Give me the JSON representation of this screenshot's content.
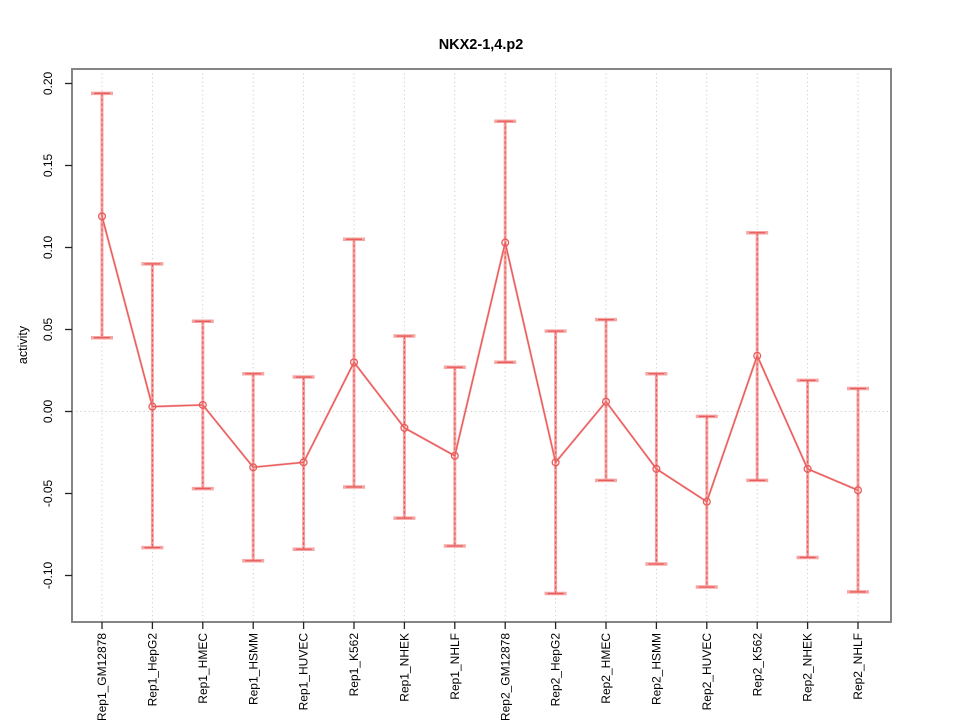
{
  "chart_data": {
    "type": "line",
    "title": "NKX2-1,4.p2",
    "xlabel": "",
    "ylabel": "activity",
    "ylim": [
      -0.125,
      0.205
    ],
    "yticks": [
      0.2,
      0.15,
      0.1,
      0.05,
      0.0,
      -0.05,
      -0.1
    ],
    "ytick_labels": [
      "0.20",
      "0.15",
      "0.10",
      "0.05",
      "0.00",
      "-0.05",
      "-0.10"
    ],
    "categories": [
      "Rep1_GM12878",
      "Rep1_HepG2",
      "Rep1_HMEC",
      "Rep1_HSMM",
      "Rep1_HUVEC",
      "Rep1_K562",
      "Rep1_NHEK",
      "Rep1_NHLF",
      "Rep2_GM12878",
      "Rep2_HepG2",
      "Rep2_HMEC",
      "Rep2_HSMM",
      "Rep2_HUVEC",
      "Rep2_K562",
      "Rep2_NHEK",
      "Rep2_NHLF"
    ],
    "series": [
      {
        "name": "activity",
        "values": [
          0.119,
          0.003,
          0.004,
          -0.034,
          -0.031,
          0.03,
          -0.01,
          -0.027,
          0.103,
          -0.031,
          0.006,
          -0.035,
          -0.055,
          0.034,
          -0.035,
          -0.048
        ],
        "upper": [
          0.194,
          0.09,
          0.055,
          0.023,
          0.021,
          0.105,
          0.046,
          0.027,
          0.177,
          0.049,
          0.056,
          0.023,
          -0.003,
          0.109,
          0.019,
          0.014
        ],
        "lower": [
          0.045,
          -0.083,
          -0.047,
          -0.091,
          -0.084,
          -0.046,
          -0.065,
          -0.082,
          0.03,
          -0.111,
          -0.042,
          -0.093,
          -0.107,
          -0.042,
          -0.089,
          -0.11
        ]
      }
    ],
    "grid": {
      "vertical_dotted_at_each_category": true,
      "horizontal_dotted_at_zero": true
    },
    "legend_position": "none",
    "marker": "open-circle",
    "colors": {
      "point_line": "#e85b5b",
      "errorbar_light": "#f5a6a4",
      "grid": "#cccccc",
      "box": "#858585",
      "tick": "#222222",
      "text": "#000000",
      "background": "#ffffff"
    }
  }
}
